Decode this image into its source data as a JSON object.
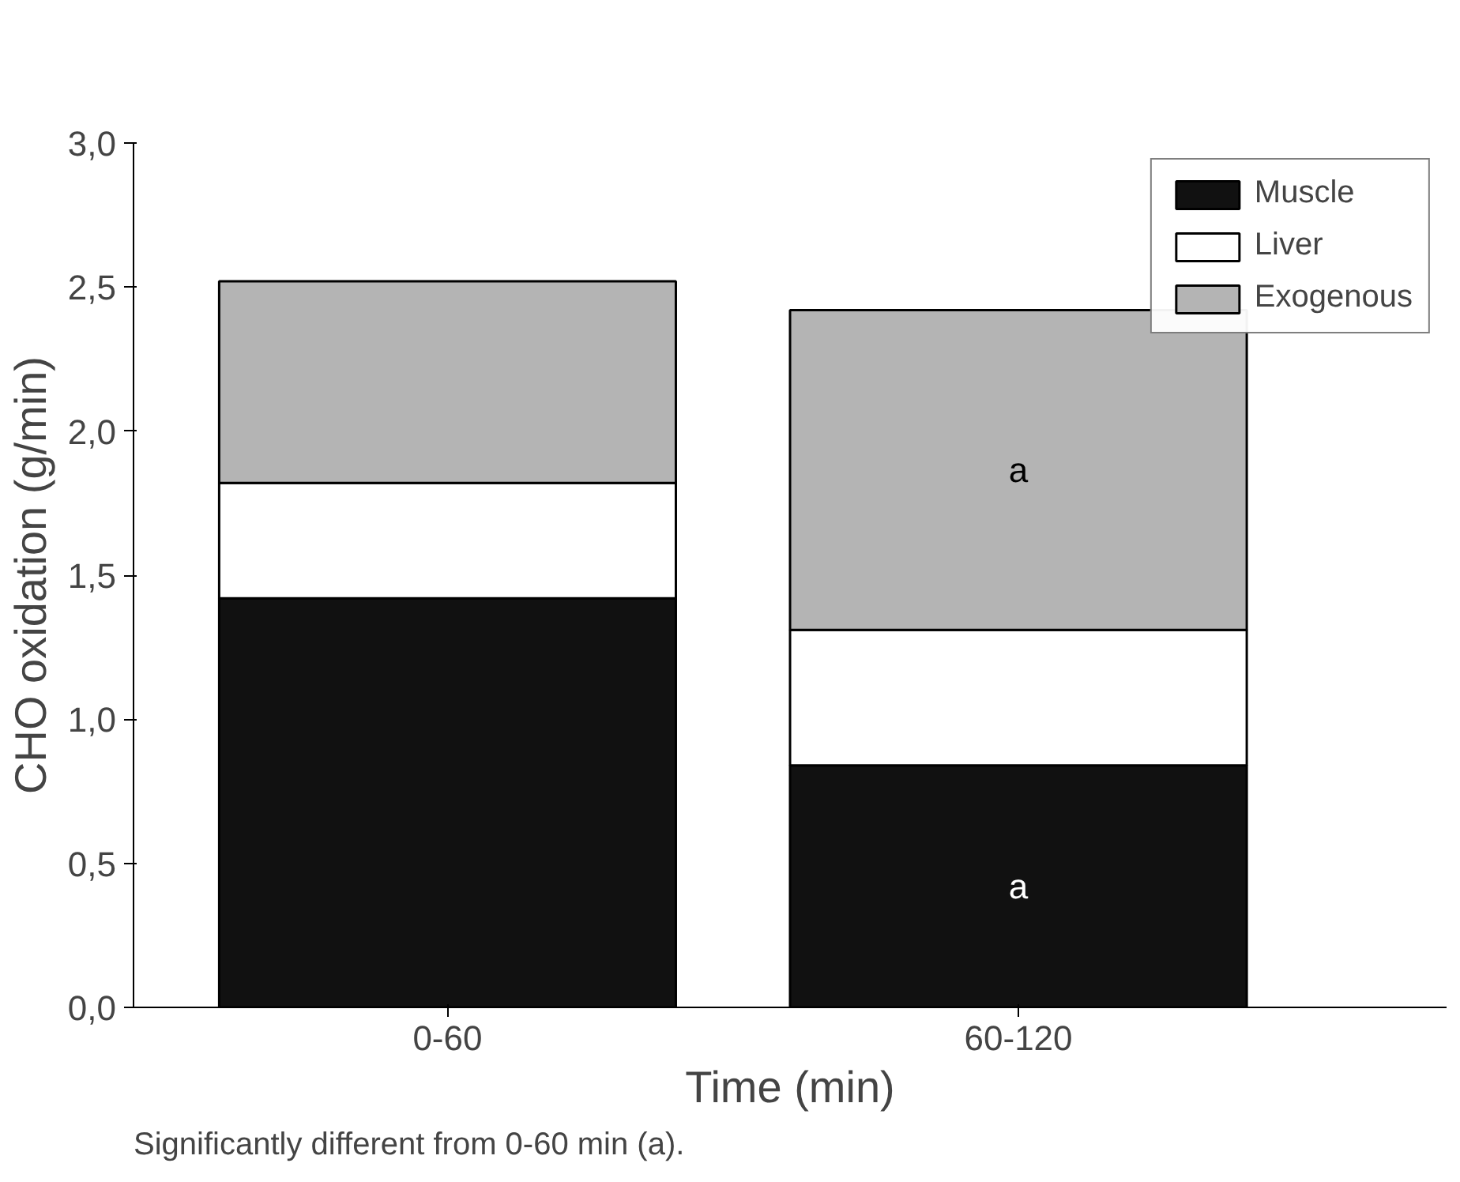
{
  "chart_data": {
    "type": "bar",
    "stacked": true,
    "xlabel": "Time (min)",
    "ylabel": "CHO oxidation (g/min)",
    "categories": [
      "0-60",
      "60-120"
    ],
    "series": [
      {
        "name": "Muscle",
        "color": "#111111",
        "values": [
          1.42,
          0.84
        ]
      },
      {
        "name": "Liver",
        "color": "#ffffff",
        "values": [
          0.4,
          0.47
        ]
      },
      {
        "name": "Exogenous",
        "color": "#b4b4b4",
        "values": [
          0.7,
          1.11
        ]
      }
    ],
    "ylim": [
      0,
      3
    ],
    "yticks": [
      {
        "value": 0,
        "label": "0,0"
      },
      {
        "value": 0.5,
        "label": "0,5"
      },
      {
        "value": 1,
        "label": "1,0"
      },
      {
        "value": 1.5,
        "label": "1,5"
      },
      {
        "value": 2,
        "label": "2,0"
      },
      {
        "value": 2.5,
        "label": "2,5"
      },
      {
        "value": 3,
        "label": "3,0"
      }
    ],
    "grid": false,
    "legend": "top right",
    "annotations": [
      "a",
      "a",
      "Significantly different from 0-60 min (a)."
    ]
  }
}
